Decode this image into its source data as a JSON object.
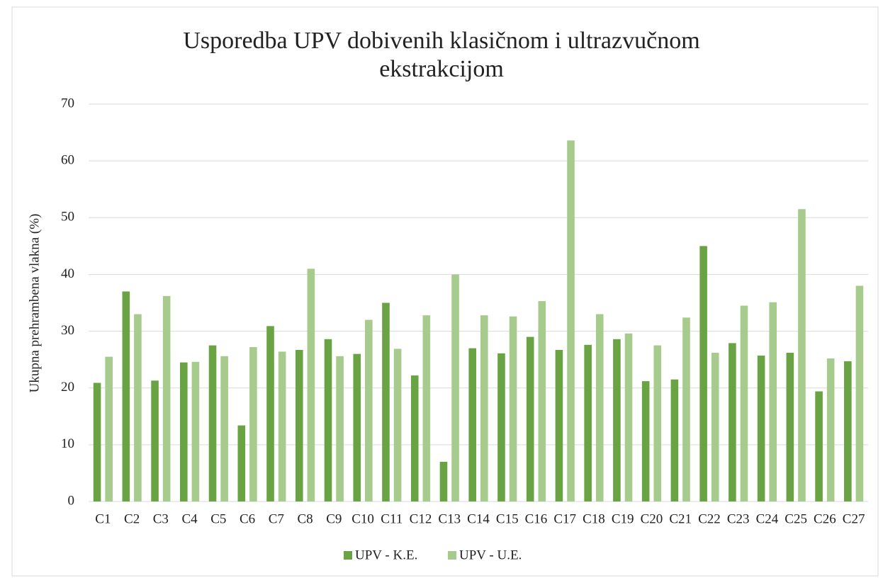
{
  "chart_data": {
    "type": "bar",
    "title": "Usporedba UPV dobivenih klasičnom i ultrazvučnom ekstrakcijom",
    "y_label": "Ukupna prehrambena vlakna (%)",
    "categories": [
      "C1",
      "C2",
      "C3",
      "C4",
      "C5",
      "C6",
      "C7",
      "C8",
      "C9",
      "C10",
      "C11",
      "C12",
      "C13",
      "C14",
      "C15",
      "C16",
      "C17",
      "C18",
      "C19",
      "C20",
      "C21",
      "C22",
      "C23",
      "C24",
      "C25",
      "C26",
      "C27"
    ],
    "series": [
      {
        "name": "UPV - K.E.",
        "color": "#6aa343",
        "values": [
          20.9,
          37,
          21.3,
          24.5,
          27.5,
          13.4,
          30.9,
          26.7,
          28.6,
          26,
          35,
          22.2,
          7,
          27,
          26.1,
          29,
          26.7,
          27.6,
          28.6,
          21.2,
          21.5,
          45,
          27.9,
          25.7,
          26.2,
          19.4,
          24.7
        ]
      },
      {
        "name": "UPV - U.E.",
        "color": "#a6cb8d",
        "values": [
          25.5,
          33,
          36.2,
          24.6,
          25.6,
          27.2,
          26.4,
          41,
          25.6,
          32,
          26.9,
          32.8,
          40,
          32.8,
          32.6,
          35.3,
          63.6,
          33,
          29.6,
          27.5,
          32.4,
          26.2,
          34.5,
          35.1,
          51.5,
          25.2,
          38
        ]
      }
    ],
    "ylim": [
      0,
      70
    ],
    "yticks": [
      0,
      10,
      20,
      30,
      40,
      50,
      60,
      70
    ],
    "grid": true,
    "legend": "bottom"
  }
}
